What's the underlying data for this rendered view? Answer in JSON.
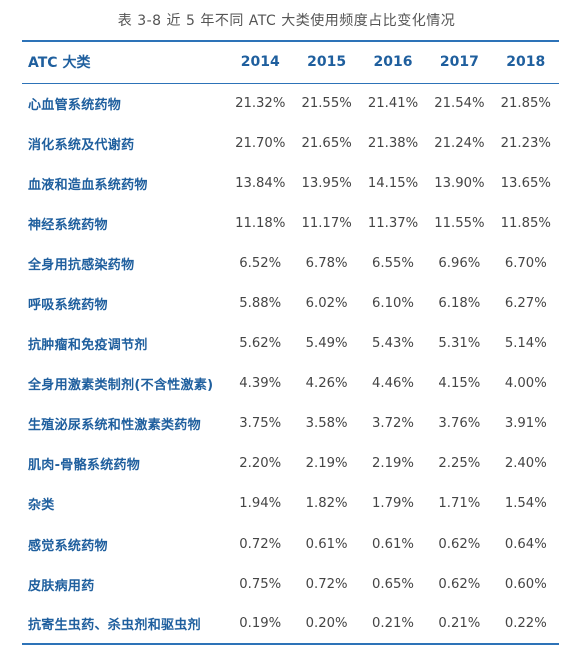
{
  "caption": "表 3-8  近 5 年不同 ATC 大类使用频度占比变化情况",
  "table": {
    "headers": [
      "ATC 大类",
      "2014",
      "2015",
      "2016",
      "2017",
      "2018"
    ],
    "rows": [
      [
        "心血管系统药物",
        "21.32%",
        "21.55%",
        "21.41%",
        "21.54%",
        "21.85%"
      ],
      [
        "消化系统及代谢药",
        "21.70%",
        "21.65%",
        "21.38%",
        "21.24%",
        "21.23%"
      ],
      [
        "血液和造血系统药物",
        "13.84%",
        "13.95%",
        "14.15%",
        "13.90%",
        "13.65%"
      ],
      [
        "神经系统药物",
        "11.18%",
        "11.17%",
        "11.37%",
        "11.55%",
        "11.85%"
      ],
      [
        "全身用抗感染药物",
        "6.52%",
        "6.78%",
        "6.55%",
        "6.96%",
        "6.70%"
      ],
      [
        "呼吸系统药物",
        "5.88%",
        "6.02%",
        "6.10%",
        "6.18%",
        "6.27%"
      ],
      [
        "抗肿瘤和免疫调节剂",
        "5.62%",
        "5.49%",
        "5.43%",
        "5.31%",
        "5.14%"
      ],
      [
        "全身用激素类制剂(不含性激素)",
        "4.39%",
        "4.26%",
        "4.46%",
        "4.15%",
        "4.00%"
      ],
      [
        "生殖泌尿系统和性激素类药物",
        "3.75%",
        "3.58%",
        "3.72%",
        "3.76%",
        "3.91%"
      ],
      [
        "肌肉-骨骼系统药物",
        "2.20%",
        "2.19%",
        "2.19%",
        "2.25%",
        "2.40%"
      ],
      [
        "杂类",
        "1.94%",
        "1.82%",
        "1.79%",
        "1.71%",
        "1.54%"
      ],
      [
        "感觉系统药物",
        "0.72%",
        "0.61%",
        "0.61%",
        "0.62%",
        "0.64%"
      ],
      [
        "皮肤病用药",
        "0.75%",
        "0.72%",
        "0.65%",
        "0.62%",
        "0.60%"
      ],
      [
        "抗寄生虫药、杀虫剂和驱虫剂",
        "0.19%",
        "0.20%",
        "0.21%",
        "0.21%",
        "0.22%"
      ]
    ]
  },
  "colors": {
    "accent": "#2d73b8",
    "header_text": "#1f5f9e",
    "body_text": "#454545"
  }
}
